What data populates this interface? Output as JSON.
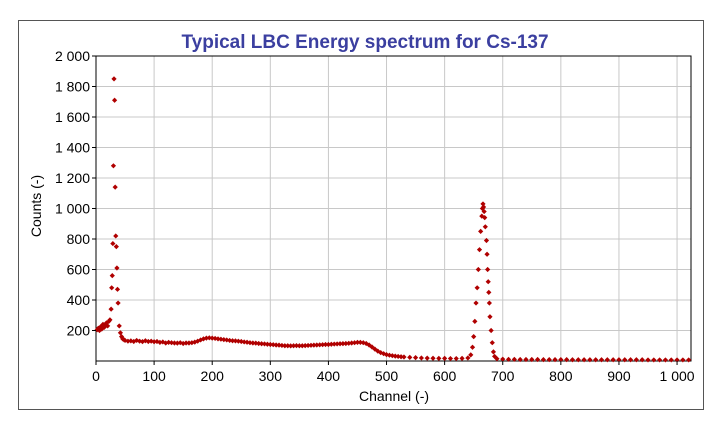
{
  "chart_data": {
    "type": "scatter",
    "title": "Typical LBC Energy spectrum for Cs-137",
    "xlabel": "Channel (-)",
    "ylabel": "Counts (-)",
    "xlim": [
      0,
      1024
    ],
    "ylim": [
      0,
      2000
    ],
    "x_ticks": [
      0,
      100,
      200,
      300,
      400,
      500,
      600,
      700,
      800,
      900,
      1000
    ],
    "x_tick_labels": [
      "0",
      "100",
      "200",
      "300",
      "400",
      "500",
      "600",
      "700",
      "800",
      "900",
      "1 000"
    ],
    "y_ticks": [
      200,
      400,
      600,
      800,
      1000,
      1200,
      1400,
      1600,
      1800,
      2000
    ],
    "y_tick_labels": [
      "200",
      "400",
      "600",
      "800",
      "1 000",
      "1 200",
      "1 400",
      "1 600",
      "1 800",
      "2 000"
    ],
    "grid": true,
    "legend": "none",
    "colors": {
      "title": "#3b3fa0",
      "marker": "#b00000",
      "grid": "#c8c8c8",
      "axis": "#000000"
    },
    "series": [
      {
        "marker": "diamond",
        "points": [
          [
            2,
            205
          ],
          [
            4,
            215
          ],
          [
            6,
            200
          ],
          [
            8,
            225
          ],
          [
            10,
            210
          ],
          [
            12,
            240
          ],
          [
            14,
            220
          ],
          [
            16,
            235
          ],
          [
            18,
            250
          ],
          [
            20,
            230
          ],
          [
            22,
            260
          ],
          [
            24,
            270
          ],
          [
            26,
            340
          ],
          [
            27,
            480
          ],
          [
            28,
            560
          ],
          [
            29,
            770
          ],
          [
            30,
            1280
          ],
          [
            31,
            1850
          ],
          [
            32,
            1710
          ],
          [
            33,
            1140
          ],
          [
            34,
            820
          ],
          [
            35,
            750
          ],
          [
            36,
            610
          ],
          [
            37,
            470
          ],
          [
            38,
            380
          ],
          [
            40,
            230
          ],
          [
            42,
            185
          ],
          [
            44,
            160
          ],
          [
            46,
            145
          ],
          [
            48,
            140
          ],
          [
            50,
            135
          ],
          [
            55,
            130
          ],
          [
            60,
            132
          ],
          [
            65,
            128
          ],
          [
            70,
            135
          ],
          [
            75,
            130
          ],
          [
            80,
            127
          ],
          [
            85,
            133
          ],
          [
            90,
            128
          ],
          [
            95,
            130
          ],
          [
            100,
            126
          ],
          [
            105,
            128
          ],
          [
            110,
            122
          ],
          [
            115,
            125
          ],
          [
            120,
            118
          ],
          [
            125,
            122
          ],
          [
            130,
            120
          ],
          [
            135,
            118
          ],
          [
            140,
            117
          ],
          [
            145,
            120
          ],
          [
            150,
            115
          ],
          [
            155,
            118
          ],
          [
            160,
            118
          ],
          [
            165,
            120
          ],
          [
            170,
            124
          ],
          [
            175,
            130
          ],
          [
            180,
            138
          ],
          [
            185,
            145
          ],
          [
            190,
            150
          ],
          [
            195,
            152
          ],
          [
            200,
            150
          ],
          [
            205,
            148
          ],
          [
            210,
            145
          ],
          [
            215,
            143
          ],
          [
            220,
            140
          ],
          [
            225,
            138
          ],
          [
            230,
            135
          ],
          [
            235,
            133
          ],
          [
            240,
            132
          ],
          [
            245,
            130
          ],
          [
            250,
            128
          ],
          [
            255,
            125
          ],
          [
            260,
            123
          ],
          [
            265,
            120
          ],
          [
            270,
            118
          ],
          [
            275,
            117
          ],
          [
            280,
            115
          ],
          [
            285,
            113
          ],
          [
            290,
            112
          ],
          [
            295,
            110
          ],
          [
            300,
            108
          ],
          [
            305,
            107
          ],
          [
            310,
            105
          ],
          [
            315,
            104
          ],
          [
            320,
            102
          ],
          [
            325,
            100
          ],
          [
            330,
            100
          ],
          [
            335,
            99
          ],
          [
            340,
            100
          ],
          [
            345,
            101
          ],
          [
            350,
            100
          ],
          [
            355,
            100
          ],
          [
            360,
            101
          ],
          [
            365,
            102
          ],
          [
            370,
            103
          ],
          [
            375,
            104
          ],
          [
            380,
            105
          ],
          [
            385,
            106
          ],
          [
            390,
            107
          ],
          [
            395,
            108
          ],
          [
            400,
            108
          ],
          [
            405,
            110
          ],
          [
            410,
            111
          ],
          [
            415,
            112
          ],
          [
            420,
            113
          ],
          [
            425,
            114
          ],
          [
            430,
            115
          ],
          [
            435,
            116
          ],
          [
            440,
            118
          ],
          [
            445,
            120
          ],
          [
            450,
            122
          ],
          [
            455,
            122
          ],
          [
            460,
            120
          ],
          [
            465,
            115
          ],
          [
            470,
            105
          ],
          [
            475,
            92
          ],
          [
            480,
            78
          ],
          [
            485,
            65
          ],
          [
            490,
            55
          ],
          [
            495,
            48
          ],
          [
            500,
            42
          ],
          [
            505,
            38
          ],
          [
            510,
            35
          ],
          [
            515,
            32
          ],
          [
            520,
            30
          ],
          [
            525,
            28
          ],
          [
            530,
            26
          ],
          [
            540,
            24
          ],
          [
            550,
            22
          ],
          [
            560,
            20
          ],
          [
            570,
            19
          ],
          [
            580,
            18
          ],
          [
            590,
            17
          ],
          [
            600,
            17
          ],
          [
            610,
            16
          ],
          [
            620,
            16
          ],
          [
            630,
            17
          ],
          [
            640,
            20
          ],
          [
            645,
            40
          ],
          [
            648,
            90
          ],
          [
            650,
            160
          ],
          [
            652,
            260
          ],
          [
            654,
            380
          ],
          [
            656,
            480
          ],
          [
            658,
            600
          ],
          [
            660,
            730
          ],
          [
            662,
            850
          ],
          [
            664,
            950
          ],
          [
            665,
            1000
          ],
          [
            666,
            1030
          ],
          [
            667,
            1010
          ],
          [
            668,
            980
          ],
          [
            669,
            940
          ],
          [
            670,
            880
          ],
          [
            672,
            790
          ],
          [
            673,
            700
          ],
          [
            674,
            600
          ],
          [
            675,
            520
          ],
          [
            676,
            450
          ],
          [
            677,
            380
          ],
          [
            678,
            290
          ],
          [
            680,
            200
          ],
          [
            682,
            120
          ],
          [
            684,
            60
          ],
          [
            686,
            30
          ],
          [
            690,
            15
          ],
          [
            700,
            12
          ],
          [
            710,
            11
          ],
          [
            720,
            11
          ],
          [
            730,
            10
          ],
          [
            740,
            10
          ],
          [
            750,
            10
          ],
          [
            760,
            10
          ],
          [
            770,
            9
          ],
          [
            780,
            9
          ],
          [
            790,
            9
          ],
          [
            800,
            9
          ],
          [
            810,
            9
          ],
          [
            820,
            8
          ],
          [
            830,
            8
          ],
          [
            840,
            8
          ],
          [
            850,
            8
          ],
          [
            860,
            8
          ],
          [
            870,
            8
          ],
          [
            880,
            8
          ],
          [
            890,
            8
          ],
          [
            900,
            8
          ],
          [
            910,
            8
          ],
          [
            920,
            8
          ],
          [
            930,
            8
          ],
          [
            940,
            8
          ],
          [
            950,
            7
          ],
          [
            960,
            7
          ],
          [
            970,
            7
          ],
          [
            980,
            7
          ],
          [
            990,
            7
          ],
          [
            1000,
            7
          ],
          [
            1010,
            7
          ],
          [
            1020,
            7
          ]
        ]
      }
    ]
  }
}
